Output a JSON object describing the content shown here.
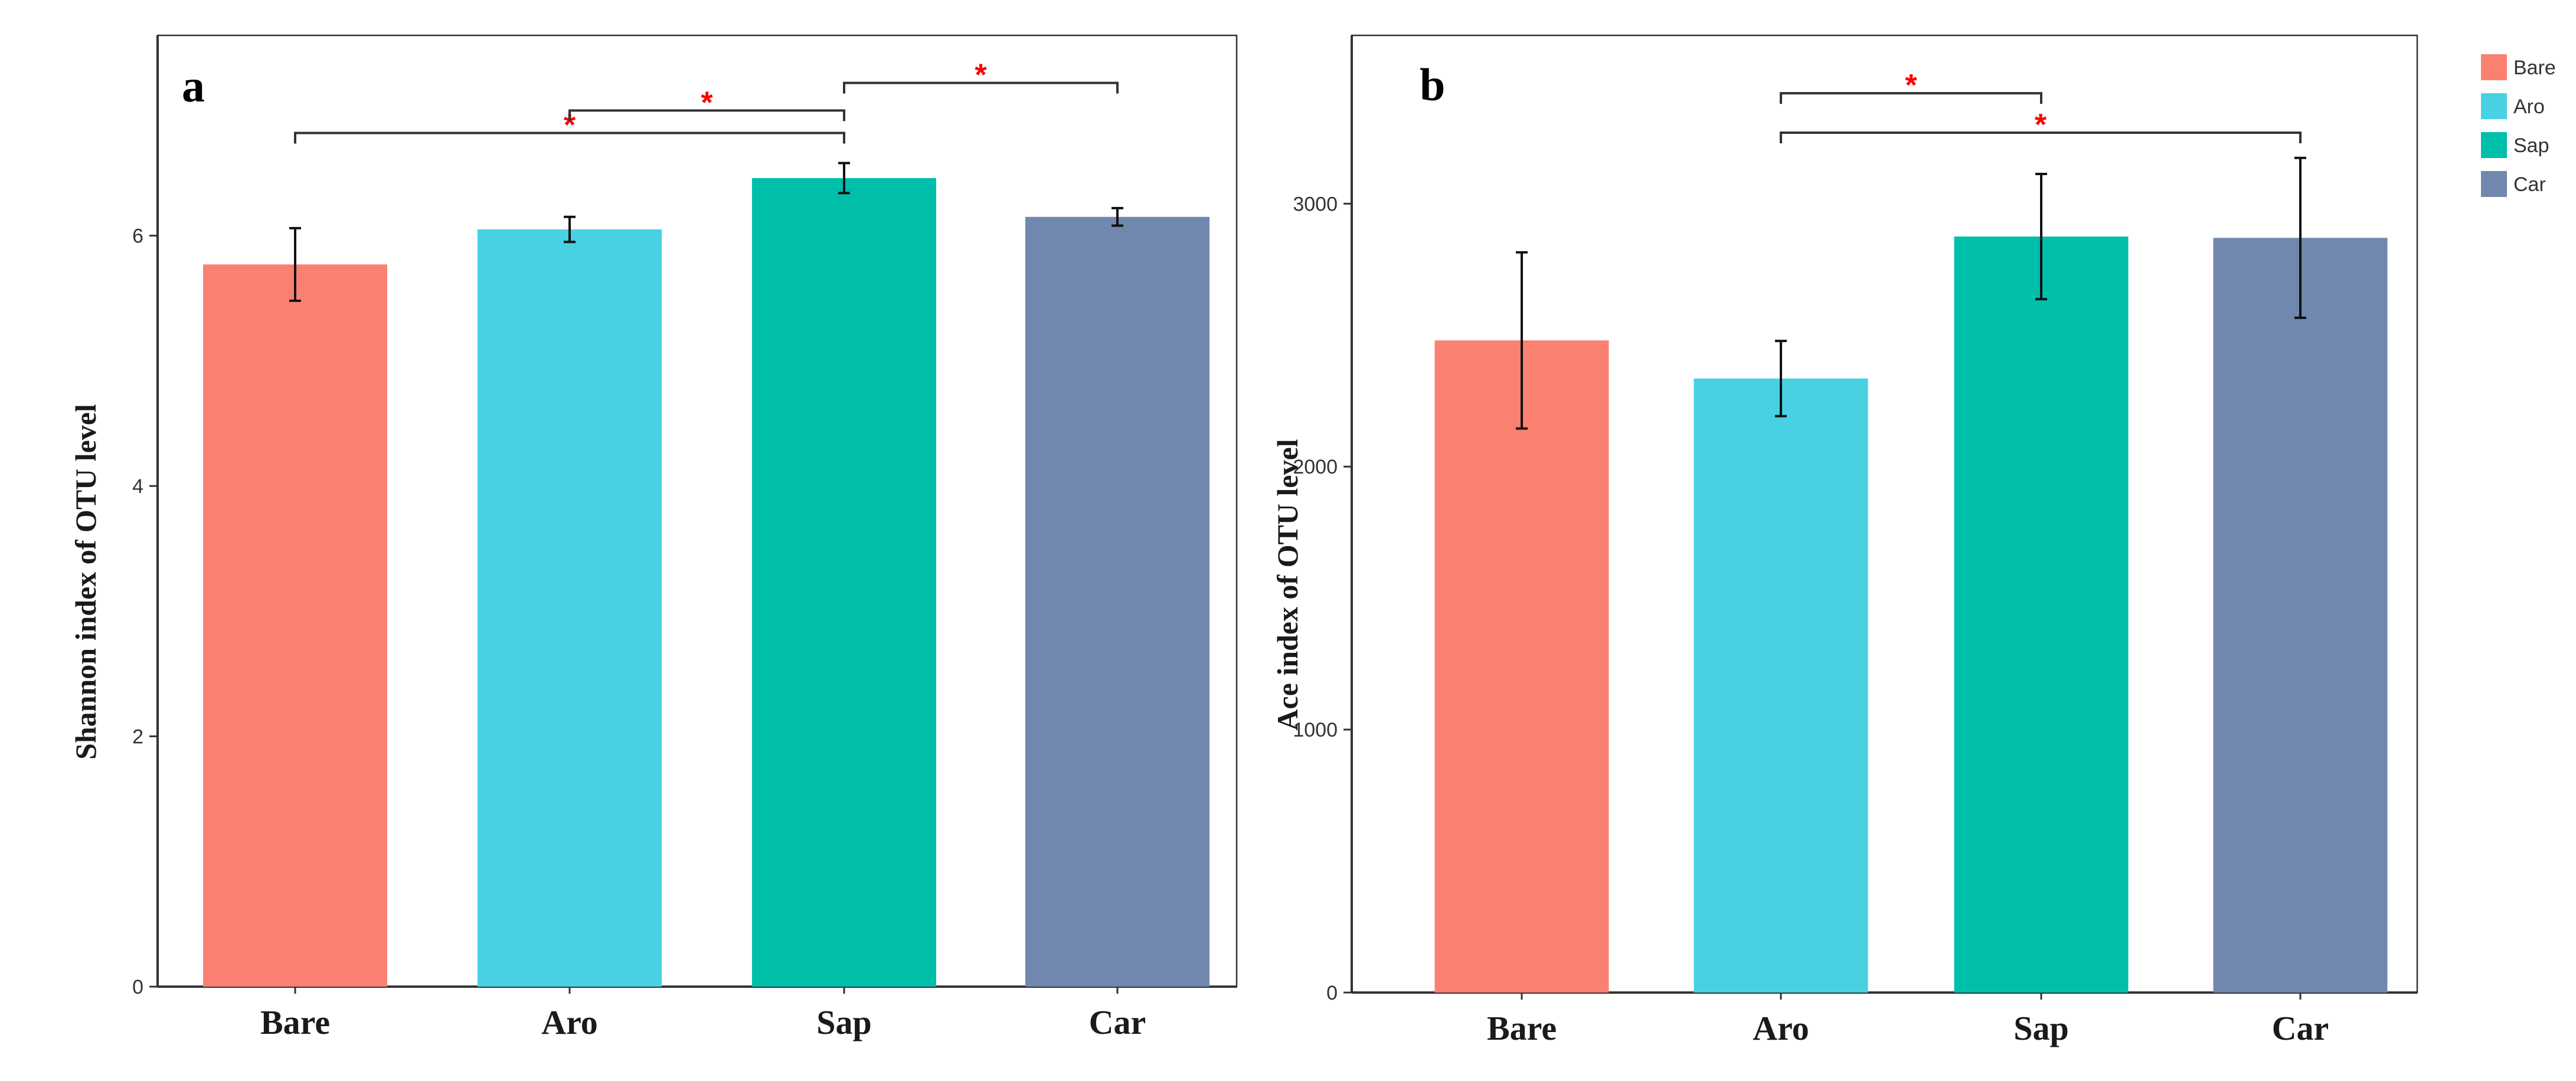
{
  "chart_data": [
    {
      "type": "bar",
      "panel_label": "a",
      "title": "",
      "xlabel": "",
      "ylabel": "Shannon index of OTU level",
      "categories": [
        "Bare",
        "Aro",
        "Sap",
        "Car"
      ],
      "values": [
        5.77,
        6.05,
        6.46,
        6.15
      ],
      "errors": [
        0.29,
        0.1,
        0.12,
        0.07
      ],
      "ylim": [
        0,
        7.6
      ],
      "yticks": [
        0,
        2,
        4,
        6
      ],
      "significance": [
        {
          "from": "Bare",
          "to": "Sap",
          "y": 6.82,
          "label": "*"
        },
        {
          "from": "Aro",
          "to": "Sap",
          "y": 7.0,
          "label": "*"
        },
        {
          "from": "Sap",
          "to": "Car",
          "y": 7.22,
          "label": "*"
        }
      ],
      "grid": false
    },
    {
      "type": "bar",
      "panel_label": "b",
      "title": "",
      "xlabel": "",
      "ylabel": "Ace index of OTU level",
      "categories": [
        "Bare",
        "Aro",
        "Sap",
        "Car"
      ],
      "values": [
        2480,
        2335,
        2875,
        2870
      ],
      "errors": [
        335,
        143,
        238,
        304
      ],
      "ylim": [
        0,
        3640
      ],
      "yticks": [
        0,
        1000,
        2000,
        3000
      ],
      "significance": [
        {
          "from": "Aro",
          "to": "Sap",
          "y": 3420,
          "label": "*"
        },
        {
          "from": "Aro",
          "to": "Car",
          "y": 3270,
          "label": "*"
        }
      ],
      "grid": false
    }
  ],
  "legend": {
    "position": "top-right",
    "items": [
      {
        "label": "Bare",
        "color": "#fa8072"
      },
      {
        "label": "Aro",
        "color": "#48d1e2"
      },
      {
        "label": "Sap",
        "color": "#00bfaa"
      },
      {
        "label": "Car",
        "color": "#7088ad"
      }
    ]
  }
}
